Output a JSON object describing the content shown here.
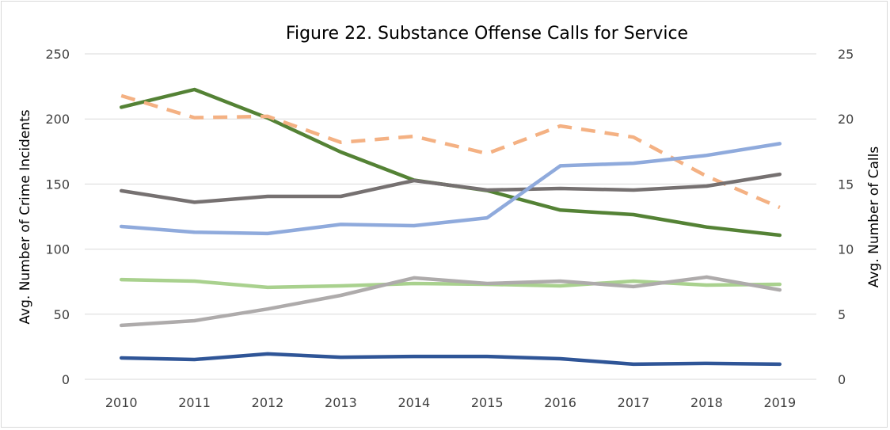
{
  "chart_data": {
    "type": "line",
    "title": "Figure 22. Substance Offense Calls for Service",
    "ylabel": "Avg. Number of Crime Incidents",
    "y2label": "Avg. Number of Calls",
    "ylim": [
      0,
      250
    ],
    "y2lim": [
      0,
      25
    ],
    "yticks": [
      "0",
      "50",
      "100",
      "150",
      "200",
      "250"
    ],
    "y2ticks": [
      "0",
      "5",
      "10",
      "15",
      "20",
      "25"
    ],
    "grid": true,
    "categories": [
      "2010",
      "2011",
      "2012",
      "2013",
      "2014",
      "2015",
      "2016",
      "2017",
      "2018",
      "2019"
    ],
    "series": [
      {
        "color": "#548235",
        "dashed": false,
        "values": [
          209,
          222.6,
          200.7,
          174.6,
          153,
          145,
          130,
          126.5,
          117,
          110.7
        ]
      },
      {
        "color": "#F4B183",
        "dashed": true,
        "values": [
          217.8,
          201,
          202,
          182,
          186.7,
          173.4,
          194.6,
          186,
          156,
          132
        ]
      },
      {
        "color": "#767171",
        "dashed": false,
        "values": [
          144.8,
          136,
          140.5,
          140.5,
          152.7,
          145.4,
          146.6,
          145.4,
          148.4,
          157.5
        ]
      },
      {
        "color": "#8FAADC",
        "dashed": false,
        "values": [
          117.4,
          113,
          112,
          119,
          118,
          124,
          164,
          166,
          172,
          181
        ]
      },
      {
        "color": "#A9D18E",
        "dashed": false,
        "values": [
          76.6,
          75.4,
          70.6,
          71.8,
          73.6,
          73,
          71.8,
          75.4,
          72.4,
          73
        ]
      },
      {
        "color": "#AEABAB",
        "dashed": false,
        "values": [
          41.4,
          45,
          54,
          64.5,
          77.9,
          73.6,
          75.4,
          71.2,
          78.5,
          68.7
        ]
      },
      {
        "color": "#2F5597",
        "dashed": false,
        "values": [
          16.4,
          15.2,
          19.5,
          17,
          17.6,
          17.6,
          15.8,
          11.6,
          12.2,
          11.6
        ]
      }
    ]
  }
}
